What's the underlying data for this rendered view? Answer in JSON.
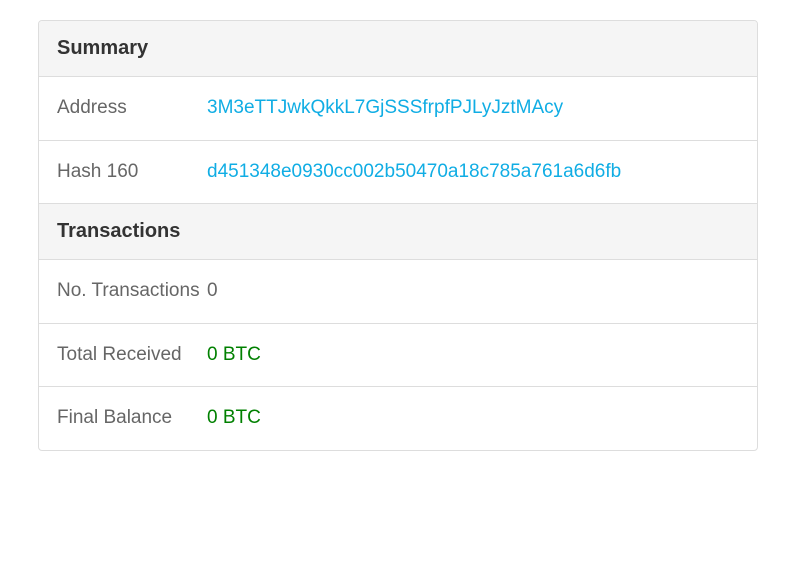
{
  "summary": {
    "header": "Summary",
    "address": {
      "label": "Address",
      "value": "3M3eTTJwkQkkL7GjSSSfrpfPJLyJztMAcy"
    },
    "hash160": {
      "label": "Hash 160",
      "value": "d451348e0930cc002b50470a18c785a761a6d6fb"
    }
  },
  "transactions": {
    "header": "Transactions",
    "no_transactions": {
      "label": "No. Transactions",
      "value": "0"
    },
    "total_received": {
      "label": "Total Received",
      "value": "0 BTC"
    },
    "final_balance": {
      "label": "Final Balance",
      "value": "0 BTC"
    }
  },
  "colors": {
    "link": "#10ade4",
    "text": "#666666",
    "header_text": "#333333",
    "btc": "#008000",
    "border": "#dddddd",
    "header_bg": "#f5f5f5",
    "background": "#ffffff"
  }
}
